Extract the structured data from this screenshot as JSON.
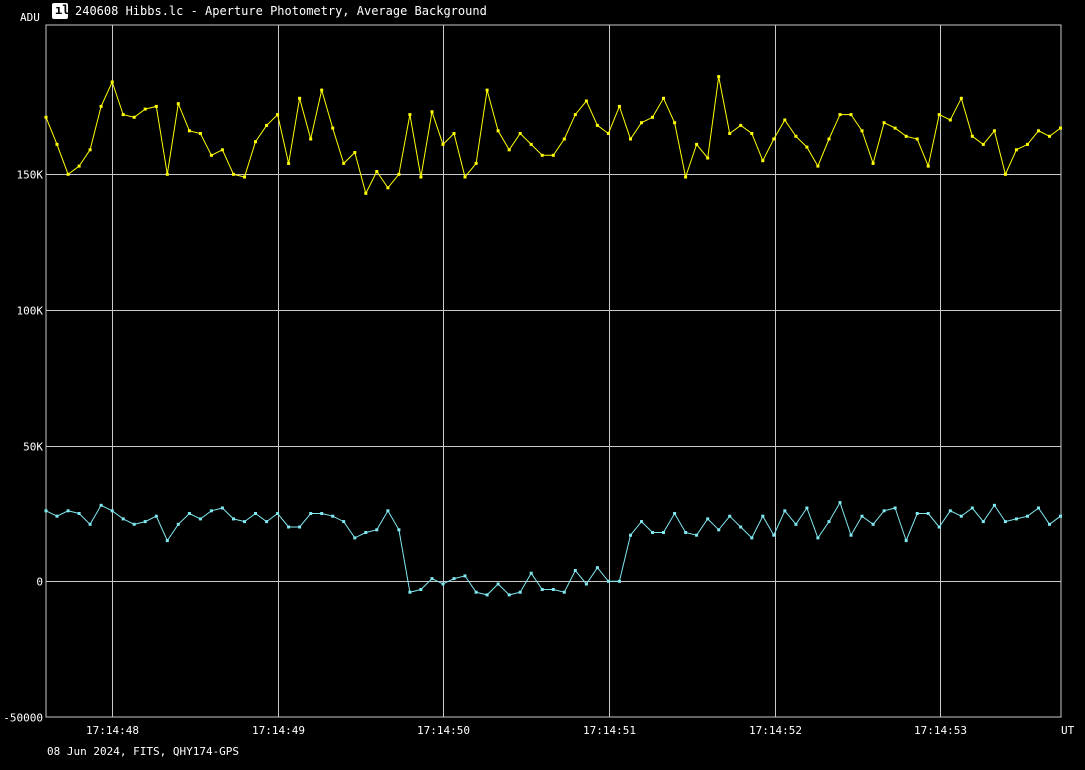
{
  "window": {
    "title": "240608 Hibbs.lc - Aperture Photometry, Average Background",
    "icon": "graph-icon"
  },
  "footer": "08 Jun 2024, FITS, QHY174-GPS",
  "chart_data": {
    "type": "line",
    "title": "240608 Hibbs.lc - Aperture Photometry, Average Background",
    "ylabel": "ADU",
    "xlabel": "UT",
    "ylim": [
      -50000,
      205000
    ],
    "grid": true,
    "colors": {
      "background": "#000000",
      "grid": "#c8c8c8"
    },
    "y_ticks": [
      {
        "value": 150000,
        "label": "150K"
      },
      {
        "value": 100000,
        "label": "100K"
      },
      {
        "value": 50000,
        "label": "50K"
      },
      {
        "value": 0,
        "label": "0"
      },
      {
        "value": -50000,
        "label": "-50000"
      }
    ],
    "x_ticks": [
      {
        "value": 1,
        "label": "17:14:48"
      },
      {
        "value": 2,
        "label": "17:14:49"
      },
      {
        "value": 3,
        "label": "17:14:50"
      },
      {
        "value": 4,
        "label": "17:14:51"
      },
      {
        "value": 5,
        "label": "17:14:52"
      },
      {
        "value": 6,
        "label": "17:14:53"
      }
    ],
    "xlim": [
      0.6,
      6.73
    ],
    "series": [
      {
        "color": "#ffff00",
        "x0": 0.6,
        "dx": 0.0666,
        "values": [
          171000,
          161000,
          150000,
          153000,
          159000,
          175000,
          184000,
          172000,
          171000,
          174000,
          175000,
          150000,
          176000,
          166000,
          165000,
          157000,
          159000,
          150000,
          149000,
          162000,
          168000,
          172000,
          154000,
          178000,
          163000,
          181000,
          167000,
          154000,
          158000,
          143000,
          151000,
          145000,
          150000,
          172000,
          149000,
          173000,
          161000,
          165000,
          149000,
          154000,
          181000,
          166000,
          159000,
          165000,
          161000,
          157000,
          157000,
          163000,
          172000,
          177000,
          168000,
          165000,
          175000,
          163000,
          169000,
          171000,
          178000,
          169000,
          149000,
          161000,
          156000,
          186000,
          165000,
          168000,
          165000,
          155000,
          163000,
          170000,
          164000,
          160000,
          153000,
          163000,
          172000,
          172000,
          166000,
          154000,
          169000,
          167000,
          164000,
          163000,
          153000,
          172000,
          170000,
          178000,
          164000,
          161000,
          166000,
          150000,
          159000,
          161000,
          166000,
          164000,
          167000
        ]
      },
      {
        "color": "#80e8f0",
        "x0": 0.6,
        "dx": 0.0666,
        "values": [
          26000,
          24000,
          26000,
          25000,
          21000,
          28000,
          26000,
          23000,
          21000,
          22000,
          24000,
          15000,
          21000,
          25000,
          23000,
          26000,
          27000,
          23000,
          22000,
          25000,
          22000,
          25000,
          20000,
          20000,
          25000,
          25000,
          24000,
          22000,
          16000,
          18000,
          19000,
          26000,
          19000,
          -4000,
          -3000,
          1000,
          -1000,
          1000,
          2000,
          -4000,
          -5000,
          -1000,
          -5000,
          -4000,
          3000,
          -3000,
          -3000,
          -4000,
          4000,
          -1000,
          5000,
          0,
          0,
          17000,
          22000,
          18000,
          18000,
          25000,
          18000,
          17000,
          23000,
          19000,
          24000,
          20000,
          16000,
          24000,
          17000,
          26000,
          21000,
          27000,
          16000,
          22000,
          29000,
          17000,
          24000,
          21000,
          26000,
          27000,
          15000,
          25000,
          25000,
          20000,
          26000,
          24000,
          27000,
          22000,
          28000,
          22000,
          23000,
          24000,
          27000,
          21000,
          24000
        ]
      }
    ]
  }
}
